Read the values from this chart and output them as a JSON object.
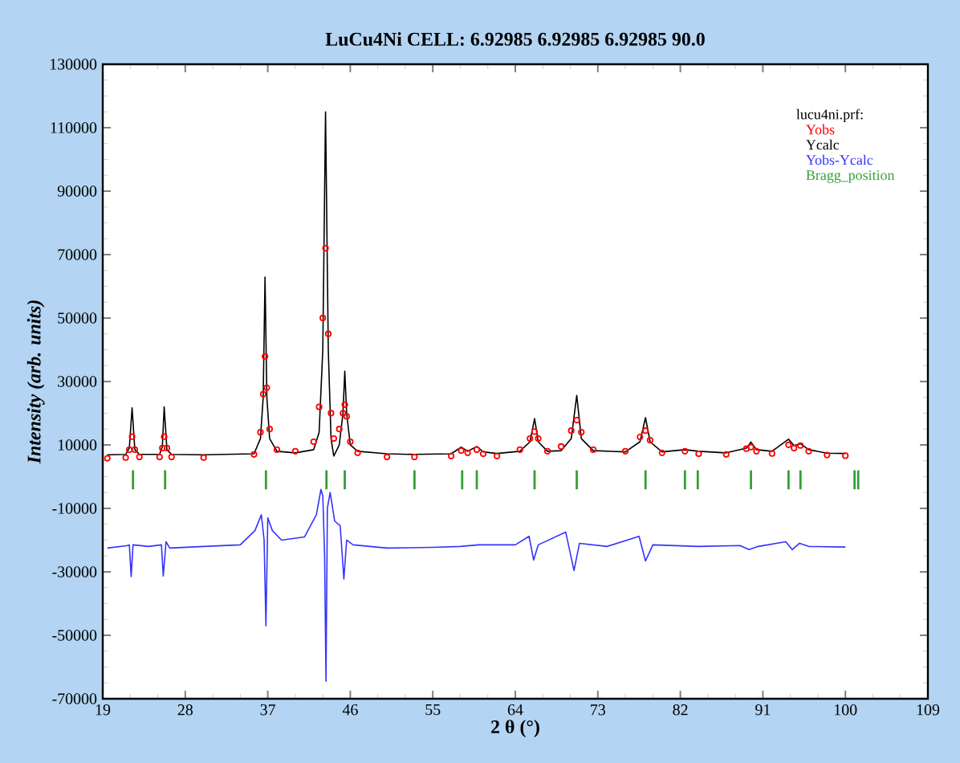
{
  "chart_data": {
    "type": "line",
    "title": "LuCu4Ni CELL: 6.92985 6.92985 6.92985 90.0",
    "xlabel": "2 θ (°)",
    "ylabel": "Intensity (arb. units)",
    "legend_title": "lucu4ni.prf:",
    "legend": "top right",
    "grid": false,
    "xlim": [
      19,
      109
    ],
    "xticks": [
      19,
      28,
      37,
      46,
      55,
      64,
      73,
      82,
      91,
      100,
      109
    ],
    "ylim": [
      -70000,
      130000
    ],
    "yticks": [
      -70000,
      -50000,
      -30000,
      -10000,
      10000,
      30000,
      50000,
      70000,
      90000,
      110000,
      130000
    ],
    "series": [
      {
        "name": "Yobs",
        "type": "scatter",
        "marker": "circle",
        "color": "#ff0000",
        "x": [
          19.5,
          21.5,
          21.9,
          22.2,
          22.5,
          23,
          25.2,
          25.5,
          25.7,
          26,
          26.5,
          30,
          35.5,
          36.2,
          36.5,
          36.7,
          36.9,
          37.2,
          38,
          40,
          42,
          42.6,
          43.0,
          43.3,
          43.6,
          43.9,
          44.2,
          44.8,
          45.2,
          45.4,
          45.6,
          46.0,
          46.8,
          50,
          53,
          57,
          58.1,
          58.8,
          59.8,
          60.5,
          62,
          64.5,
          65.6,
          66.1,
          66.5,
          67.5,
          69,
          70.1,
          70.7,
          71.2,
          72.5,
          76,
          77.6,
          78.2,
          78.7,
          80,
          82.5,
          84,
          87,
          89.2,
          89.7,
          90.3,
          92,
          93.8,
          94.4,
          95.1,
          96,
          98,
          100
        ],
        "values": [
          5800,
          6000,
          8500,
          12600,
          8500,
          6200,
          6200,
          9000,
          12600,
          9000,
          6200,
          6000,
          7000,
          14000,
          26000,
          37900,
          28000,
          15000,
          8500,
          8000,
          11000,
          22000,
          50000,
          72000,
          45000,
          20000,
          12000,
          15000,
          20000,
          22700,
          19000,
          11000,
          7500,
          6200,
          6200,
          6500,
          8200,
          7500,
          8500,
          7200,
          6500,
          8500,
          12000,
          14200,
          12000,
          8000,
          9500,
          14500,
          17800,
          14000,
          8500,
          8000,
          12500,
          14500,
          11500,
          7500,
          8000,
          7200,
          7000,
          8800,
          9300,
          8000,
          7300,
          10000,
          9000,
          9800,
          8000,
          6800,
          6600
        ]
      },
      {
        "name": "Ycalc",
        "type": "line",
        "color": "#000000",
        "x": [
          19.5,
          21.5,
          21.9,
          22.2,
          22.5,
          23,
          25.2,
          25.5,
          25.7,
          26,
          26.5,
          30,
          35.5,
          36.2,
          36.5,
          36.7,
          36.9,
          37.2,
          38,
          40,
          42,
          42.6,
          43.0,
          43.3,
          43.6,
          43.9,
          44.2,
          44.8,
          45.2,
          45.4,
          45.6,
          46.0,
          46.8,
          50,
          53,
          57,
          58.1,
          58.8,
          59.8,
          60.5,
          62,
          64.5,
          65.6,
          66.1,
          66.5,
          67.5,
          69,
          70.1,
          70.7,
          71.2,
          72.5,
          76,
          77.6,
          78.2,
          78.7,
          80,
          82.5,
          84,
          87,
          89.2,
          89.7,
          90.3,
          92,
          93.8,
          94.4,
          95.1,
          96,
          98,
          100
        ],
        "values": [
          6900,
          7000,
          9000,
          21700,
          8500,
          7000,
          7000,
          9500,
          22000,
          8500,
          7000,
          6900,
          7200,
          12000,
          25000,
          62900,
          25000,
          12000,
          8000,
          7500,
          8500,
          14000,
          40000,
          115000,
          40000,
          12000,
          6500,
          10000,
          20000,
          33300,
          20000,
          10000,
          8000,
          7200,
          7000,
          7200,
          9300,
          8000,
          9500,
          7800,
          7300,
          8000,
          11000,
          18300,
          11000,
          8000,
          8200,
          12000,
          25600,
          12000,
          8200,
          7800,
          11000,
          18600,
          11000,
          7800,
          8500,
          8000,
          7500,
          9000,
          10900,
          8500,
          8000,
          11800,
          9800,
          10400,
          8500,
          7400,
          7300
        ]
      },
      {
        "name": "Yobs-Ycalc",
        "type": "line",
        "color": "#3333ff",
        "x": [
          19.5,
          21.6,
          21.9,
          22.1,
          22.3,
          24,
          25.4,
          25.6,
          25.9,
          26.3,
          30,
          34,
          35.6,
          36.3,
          36.6,
          36.8,
          37.0,
          37.5,
          38.5,
          41,
          42.3,
          42.8,
          43.0,
          43.2,
          43.35,
          43.5,
          43.8,
          44.3,
          44.9,
          45.3,
          45.6,
          46.3,
          50,
          55,
          58,
          60,
          64,
          65.5,
          66.0,
          66.5,
          69.5,
          70.4,
          71.0,
          74,
          77.5,
          78.2,
          79,
          84,
          88.5,
          89.5,
          90.5,
          93.5,
          94.2,
          95,
          96,
          100
        ],
        "values": [
          -22500,
          -21800,
          -21500,
          -31500,
          -21500,
          -22000,
          -21500,
          -31300,
          -20500,
          -22500,
          -22000,
          -21500,
          -17000,
          -12000,
          -20000,
          -47000,
          -13000,
          -17000,
          -20000,
          -19000,
          -12000,
          -4000,
          -6000,
          -25000,
          -64500,
          -10000,
          -5000,
          -14000,
          -15500,
          -32300,
          -20000,
          -21500,
          -22500,
          -22300,
          -22000,
          -21500,
          -21500,
          -18800,
          -26300,
          -21500,
          -17500,
          -29600,
          -21000,
          -22000,
          -18800,
          -26600,
          -21500,
          -22000,
          -21700,
          -23000,
          -22000,
          -20500,
          -23000,
          -21000,
          -22000,
          -22200
        ]
      },
      {
        "name": "Bragg_position",
        "type": "bar",
        "color": "#33a033",
        "x": [
          22.3,
          25.8,
          36.8,
          43.4,
          45.4,
          53.0,
          58.2,
          59.8,
          66.1,
          70.7,
          78.2,
          82.5,
          83.9,
          89.7,
          93.8,
          95.1,
          101.0,
          101.4
        ],
        "base": [
          -4000,
          -4000,
          -4000,
          -4000,
          -4000,
          -4000,
          -4000,
          -4000,
          -4000,
          -4000,
          -4000,
          -4000,
          -4000,
          -4000,
          -4000,
          -4000,
          -4000,
          -4000
        ],
        "values": [
          6000,
          6000,
          6000,
          6000,
          6000,
          6000,
          6000,
          6000,
          6000,
          6000,
          6000,
          6000,
          6000,
          6000,
          6000,
          6000,
          6000,
          6000
        ]
      }
    ]
  }
}
